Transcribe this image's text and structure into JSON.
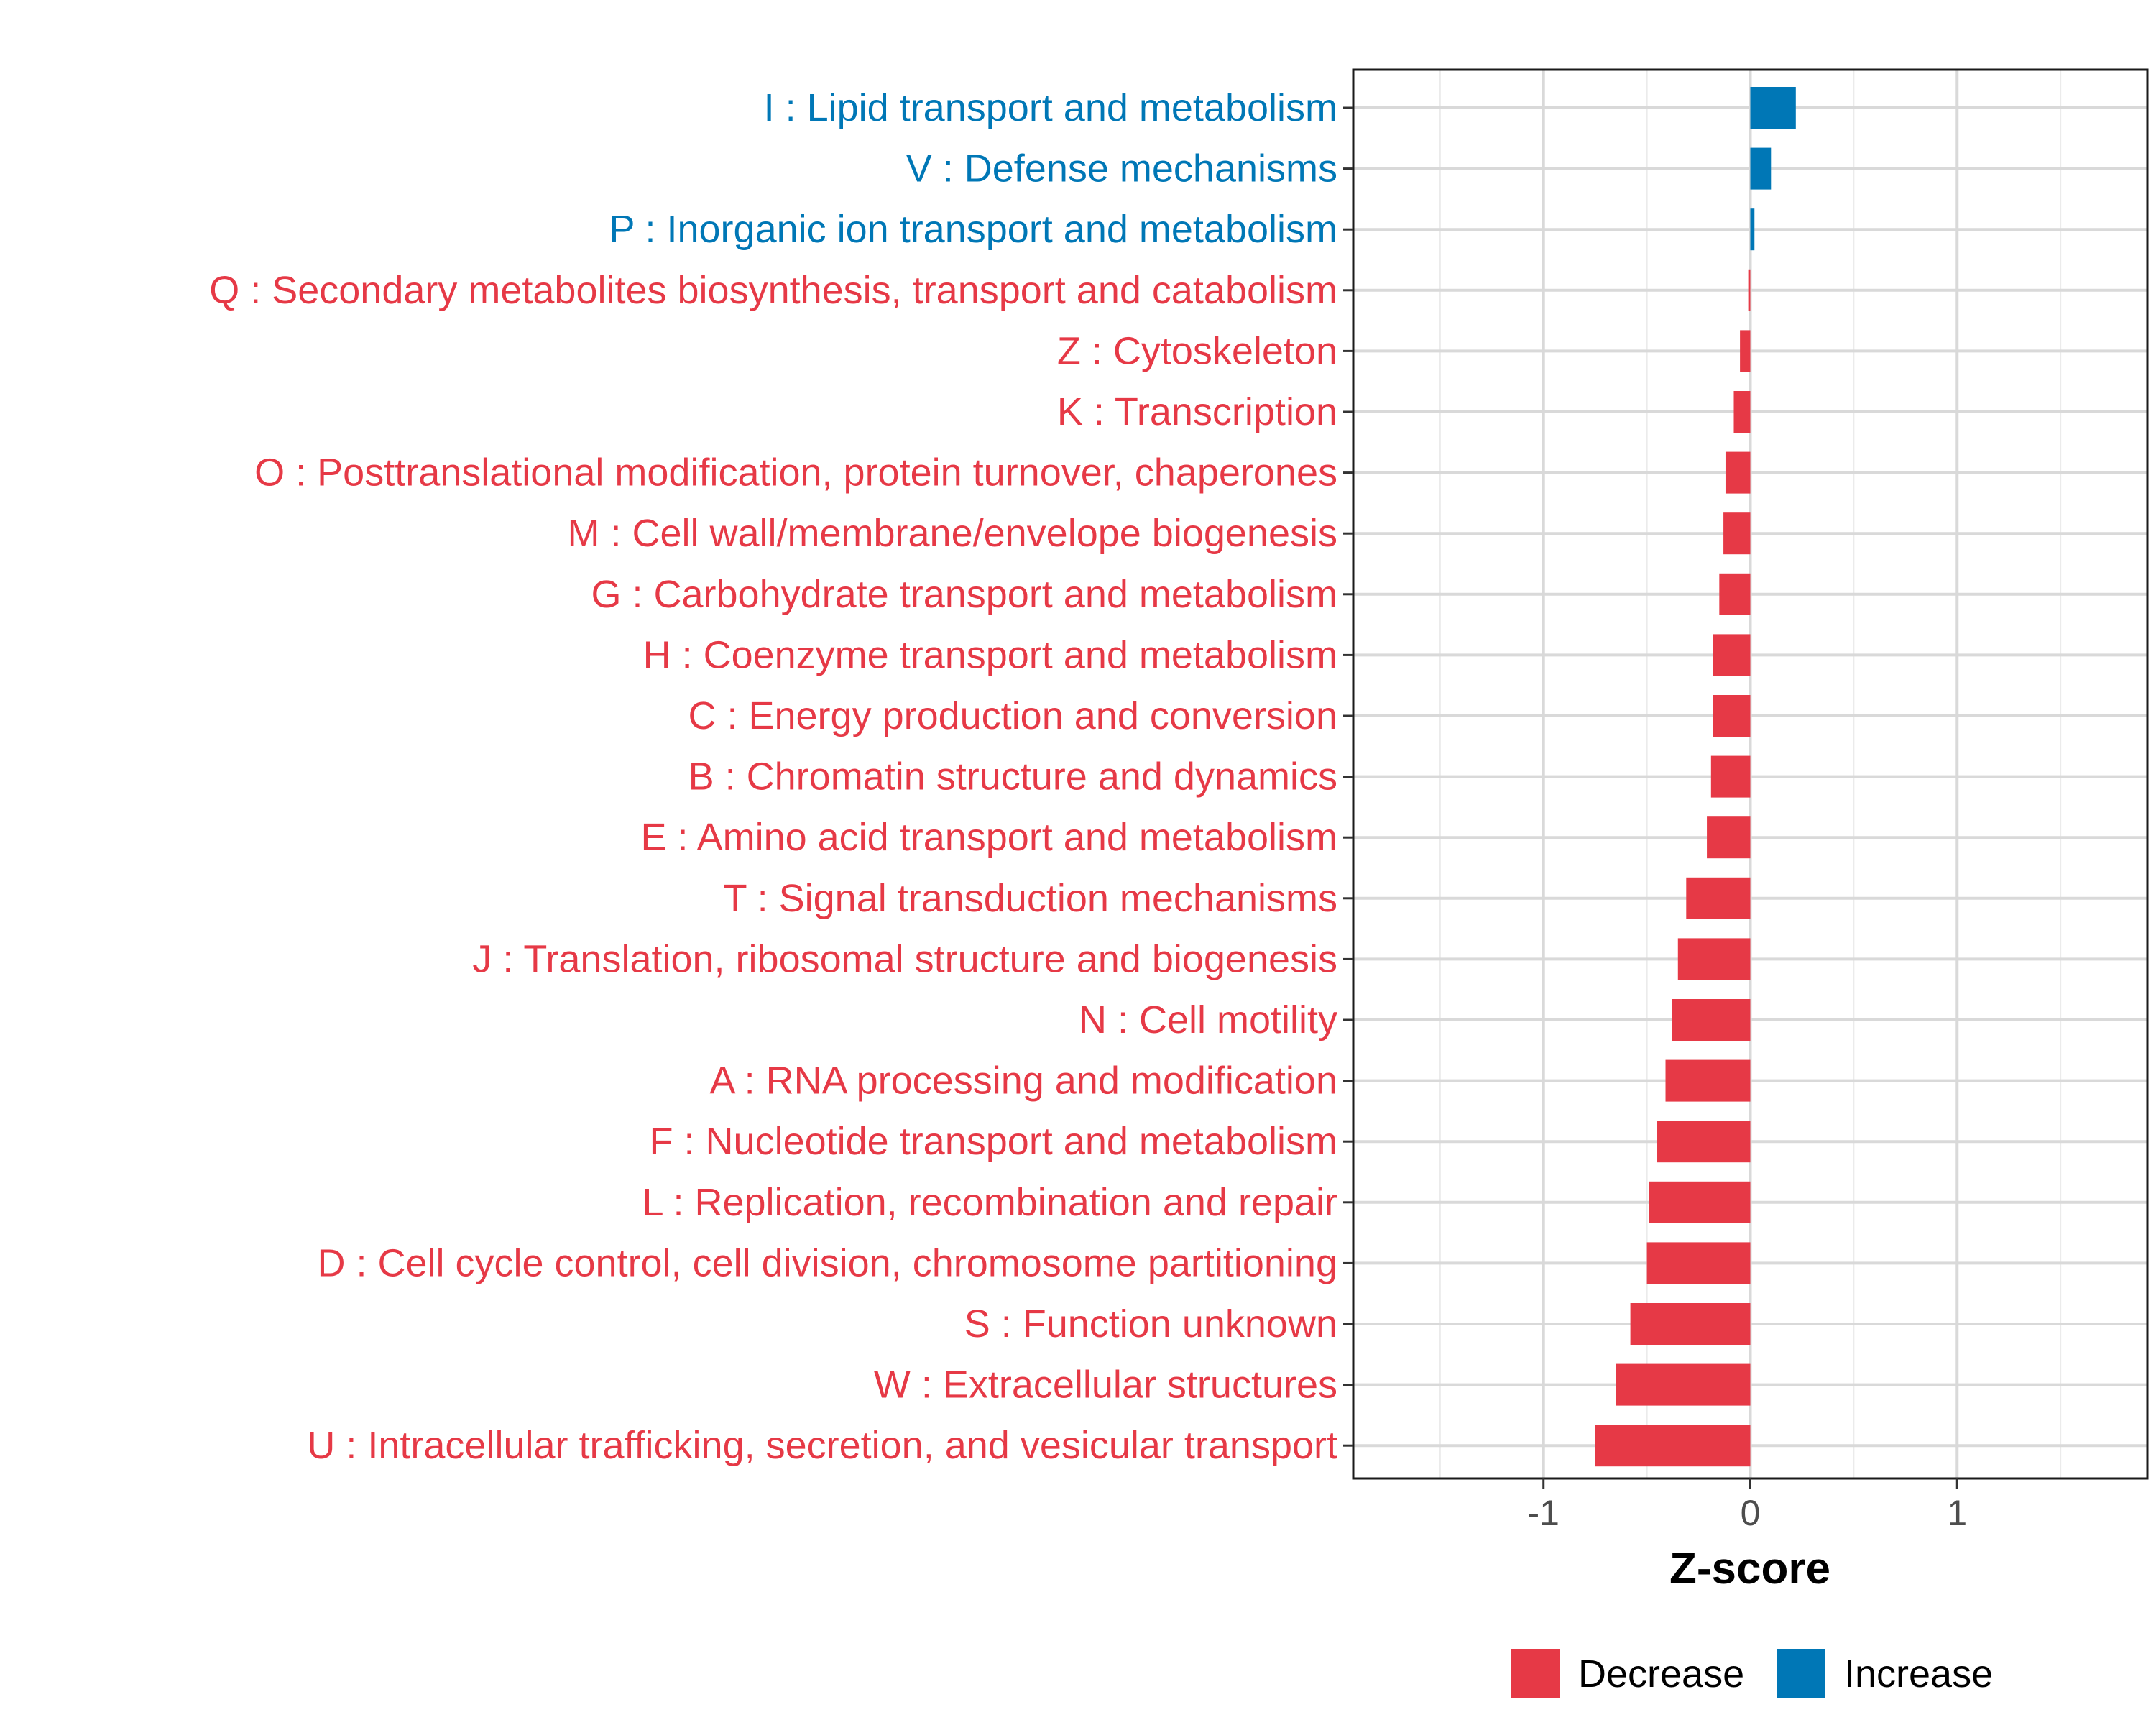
{
  "chart_data": {
    "type": "bar",
    "orientation": "horizontal",
    "xlabel": "Z-score",
    "ylabel": "",
    "xlim": [
      -1.92,
      1.92
    ],
    "xticks": [
      -1,
      0,
      1
    ],
    "xtick_labels": [
      "-1",
      "0",
      "1"
    ],
    "grid": true,
    "legend_position": "bottom",
    "legend": [
      {
        "label": "Decrease",
        "color": "#E63946"
      },
      {
        "label": "Increase",
        "color": "#0077B6"
      }
    ],
    "categories": [
      "I : Lipid transport and metabolism",
      "V : Defense mechanisms",
      "P : Inorganic ion transport and metabolism",
      "Q : Secondary metabolites biosynthesis, transport and catabolism",
      "Z : Cytoskeleton",
      "K : Transcription",
      "O : Posttranslational modification, protein turnover, chaperones",
      "M : Cell wall/membrane/envelope biogenesis",
      "G : Carbohydrate transport and metabolism",
      "H : Coenzyme transport and metabolism",
      "C : Energy production and conversion",
      "B : Chromatin structure and dynamics",
      "E : Amino acid transport and metabolism",
      "T : Signal transduction mechanisms",
      "J : Translation, ribosomal structure and biogenesis",
      "N : Cell motility",
      "A : RNA processing and modification",
      "F : Nucleotide transport and metabolism",
      "L : Replication, recombination and repair",
      "D : Cell cycle control, cell division, chromosome partitioning",
      "S : Function unknown",
      "W : Extracellular structures",
      "U : Intracellular trafficking, secretion, and vesicular transport"
    ],
    "values": [
      0.22,
      0.1,
      0.02,
      -0.01,
      -0.05,
      -0.08,
      -0.12,
      -0.13,
      -0.15,
      -0.18,
      -0.18,
      -0.19,
      -0.21,
      -0.31,
      -0.35,
      -0.38,
      -0.41,
      -0.45,
      -0.49,
      -0.5,
      -0.58,
      -0.65,
      -0.75
    ],
    "groups": [
      "Increase",
      "Increase",
      "Increase",
      "Decrease",
      "Decrease",
      "Decrease",
      "Decrease",
      "Decrease",
      "Decrease",
      "Decrease",
      "Decrease",
      "Decrease",
      "Decrease",
      "Decrease",
      "Decrease",
      "Decrease",
      "Decrease",
      "Decrease",
      "Decrease",
      "Decrease",
      "Decrease",
      "Decrease",
      "Decrease"
    ]
  }
}
